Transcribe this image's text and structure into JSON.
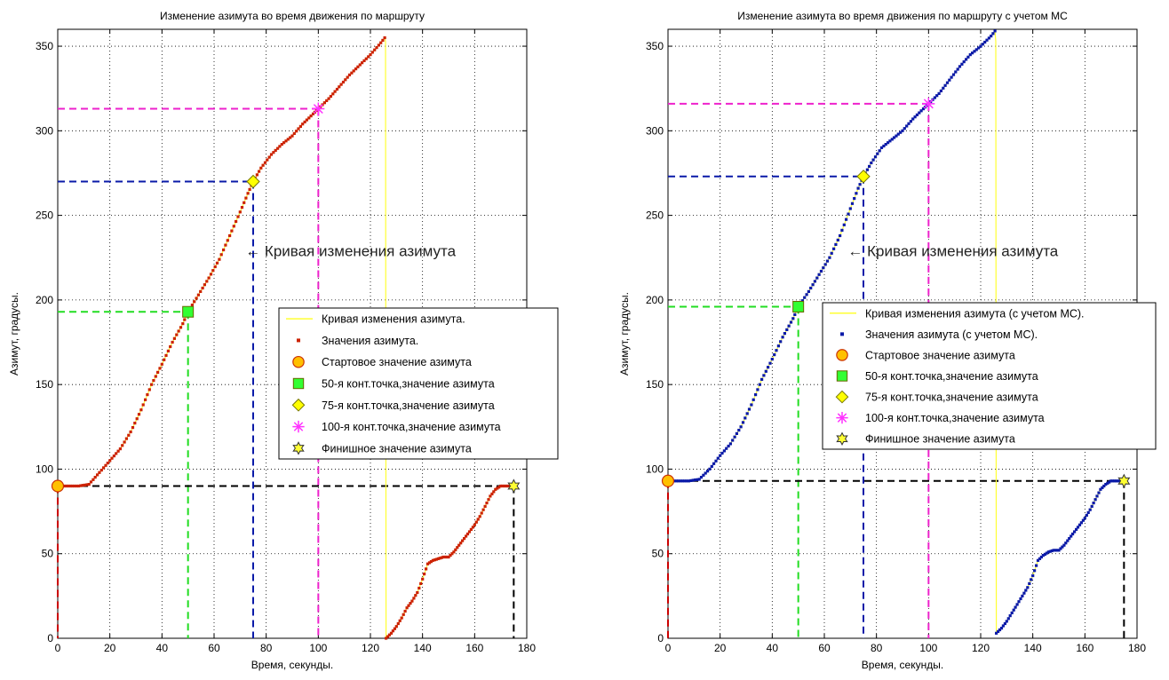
{
  "colors": {
    "left_series": "#cc2200",
    "right_series": "#0a1aa8",
    "curve": "#ffff33",
    "start_marker": "#ffc000",
    "cp50": "#32ff32",
    "cp75": "#ffff00",
    "cp100": "#ff33ff",
    "finish_marker": "#ffff33",
    "guide_start": "#cc0000",
    "guide_50": "#22dd22",
    "guide_75": "#0a1aa8",
    "guide_100": "#ee22cc",
    "guide_finish": "#000000"
  },
  "chart_data": [
    {
      "type": "line",
      "title": "Изменение азимута во время движения по маршруту",
      "xlabel": "Время, секунды.",
      "ylabel": "Азимут, градусы.",
      "xlim": [
        0,
        180
      ],
      "ylim": [
        0,
        360
      ],
      "xticks": [
        0,
        20,
        40,
        60,
        80,
        100,
        120,
        140,
        160,
        180
      ],
      "yticks": [
        0,
        50,
        100,
        150,
        200,
        250,
        300,
        350
      ],
      "grid": true,
      "legend_position": "center-right",
      "annotation": "← Кривая изменения азимута",
      "annotation_at": [
        72,
        229
      ],
      "series": [
        {
          "name": "Значения азимута.",
          "x": [
            0,
            4,
            8,
            12,
            16,
            20,
            24,
            28,
            32,
            36,
            40,
            44,
            48,
            50,
            54,
            58,
            62,
            66,
            70,
            73,
            75,
            78,
            82,
            86,
            90,
            94,
            98,
            100,
            104,
            108,
            112,
            116,
            120,
            124,
            125.5
          ],
          "y": [
            90,
            90,
            90,
            91,
            98,
            105,
            112,
            122,
            135,
            150,
            162,
            175,
            186,
            193,
            203,
            213,
            224,
            238,
            252,
            263,
            270,
            278,
            286,
            292,
            297,
            304,
            310,
            313,
            319,
            326,
            333,
            339,
            345,
            352,
            355
          ]
        },
        {
          "name": "Значения азимута.",
          "x": [
            126,
            128,
            130,
            132,
            134,
            136,
            138,
            140,
            142,
            144,
            146,
            148,
            150,
            152,
            154,
            156,
            158,
            160,
            162,
            164,
            166,
            168,
            170,
            172,
            175
          ],
          "y": [
            0,
            3,
            7,
            12,
            18,
            22,
            27,
            35,
            44,
            46,
            47,
            48,
            48,
            51,
            55,
            59,
            63,
            67,
            72,
            78,
            84,
            88,
            90,
            90,
            90
          ]
        }
      ],
      "curve_name": "Кривая изменения азимута.",
      "markers": [
        {
          "name": "Стартовое значение азимута",
          "x": 0,
          "y": 90,
          "shape": "circle"
        },
        {
          "name": "50-я конт.точка,значение азимута",
          "x": 50,
          "y": 193,
          "shape": "square"
        },
        {
          "name": "75-я конт.точка,значение азимута",
          "x": 75,
          "y": 270,
          "shape": "diamond"
        },
        {
          "name": "100-я конт.точка,значение азимута",
          "x": 100,
          "y": 313,
          "shape": "asterisk"
        },
        {
          "name": "Финишное значение азимута",
          "x": 175,
          "y": 90,
          "shape": "hexagram"
        }
      ]
    },
    {
      "type": "line",
      "title": "Изменение азимута во время движения по маршруту с учетом МС",
      "xlabel": "Время, секунды.",
      "ylabel": "Азимут, градусы.",
      "xlim": [
        0,
        180
      ],
      "ylim": [
        0,
        360
      ],
      "xticks": [
        0,
        20,
        40,
        60,
        80,
        100,
        120,
        140,
        160,
        180
      ],
      "yticks": [
        0,
        50,
        100,
        150,
        200,
        250,
        300,
        350
      ],
      "grid": true,
      "legend_position": "center-right",
      "annotation": "← Кривая изменения азимута",
      "annotation_at": [
        69,
        229
      ],
      "series": [
        {
          "name": "Значения азимута (с учетом МС).",
          "x": [
            0,
            4,
            8,
            12,
            16,
            20,
            24,
            28,
            32,
            36,
            40,
            44,
            48,
            50,
            54,
            58,
            62,
            66,
            70,
            73,
            75,
            78,
            82,
            86,
            90,
            94,
            98,
            100,
            104,
            108,
            112,
            116,
            120,
            124,
            125.5
          ],
          "y": [
            93,
            93,
            93,
            94,
            100,
            108,
            115,
            125,
            138,
            153,
            165,
            178,
            189,
            196,
            205,
            215,
            225,
            238,
            254,
            266,
            273,
            281,
            290,
            295,
            300,
            307,
            313,
            316,
            322,
            330,
            338,
            345,
            350,
            356,
            359
          ]
        },
        {
          "name": "Значения азимута (с учетом МС).",
          "x": [
            126,
            128,
            130,
            132,
            134,
            136,
            138,
            140,
            142,
            144,
            146,
            148,
            150,
            152,
            154,
            156,
            158,
            160,
            162,
            164,
            166,
            168,
            170,
            172,
            175
          ],
          "y": [
            3,
            6,
            10,
            15,
            20,
            25,
            30,
            37,
            46,
            49,
            51,
            52,
            52,
            55,
            59,
            63,
            67,
            71,
            76,
            82,
            88,
            91,
            93,
            93,
            93
          ]
        }
      ],
      "curve_name": "Кривая изменения азимута (с учетом МС).",
      "markers": [
        {
          "name": "Стартовое значение азимута",
          "x": 0,
          "y": 93,
          "shape": "circle"
        },
        {
          "name": "50-я конт.точка,значение азимута",
          "x": 50,
          "y": 196,
          "shape": "square"
        },
        {
          "name": "75-я конт.точка,значение азимута",
          "x": 75,
          "y": 273,
          "shape": "diamond"
        },
        {
          "name": "100-я конт.точка,значение азимута",
          "x": 100,
          "y": 316,
          "shape": "asterisk"
        },
        {
          "name": "Финишное значение азимута",
          "x": 175,
          "y": 93,
          "shape": "hexagram"
        }
      ]
    }
  ]
}
